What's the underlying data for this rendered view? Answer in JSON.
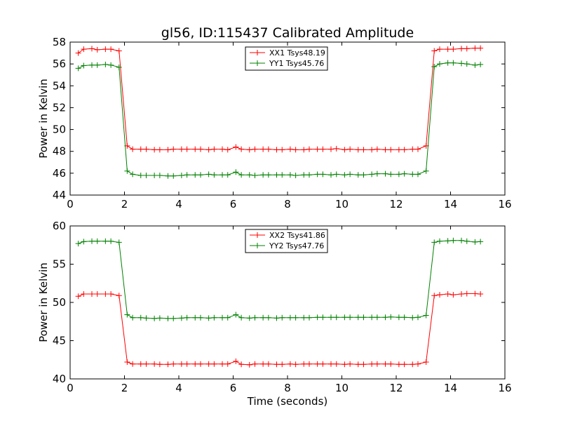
{
  "figure_title": "gl56, ID:115437 Calibrated Amplitude",
  "chart_data": [
    {
      "type": "line",
      "title": "gl56, ID:115437 Calibrated Amplitude",
      "xlabel": "",
      "ylabel": "Power in Kelvin",
      "xlim": [
        0,
        16
      ],
      "ylim": [
        44,
        58
      ],
      "xticks": [
        0,
        2,
        4,
        6,
        8,
        10,
        12,
        14,
        16
      ],
      "yticks": [
        44,
        46,
        48,
        50,
        52,
        54,
        56,
        58
      ],
      "x": [
        0.3,
        0.5,
        0.8,
        1.0,
        1.3,
        1.5,
        1.8,
        2.1,
        2.3,
        2.6,
        2.8,
        3.1,
        3.3,
        3.6,
        3.8,
        4.1,
        4.3,
        4.6,
        4.8,
        5.1,
        5.3,
        5.6,
        5.8,
        6.1,
        6.3,
        6.6,
        6.8,
        7.1,
        7.3,
        7.6,
        7.8,
        8.1,
        8.3,
        8.6,
        8.8,
        9.1,
        9.3,
        9.6,
        9.8,
        10.1,
        10.3,
        10.6,
        10.8,
        11.1,
        11.3,
        11.6,
        11.8,
        12.1,
        12.3,
        12.6,
        12.8,
        13.1,
        13.4,
        13.6,
        13.9,
        14.1,
        14.4,
        14.6,
        14.9,
        15.1
      ],
      "legend_position": "top-center",
      "series": [
        {
          "name": "XX1 Tsys48.19",
          "color": "#ff0000",
          "values": [
            57.0,
            57.35,
            57.4,
            57.3,
            57.35,
            57.35,
            57.2,
            48.5,
            48.2,
            48.2,
            48.2,
            48.15,
            48.15,
            48.15,
            48.2,
            48.2,
            48.2,
            48.2,
            48.2,
            48.15,
            48.2,
            48.2,
            48.15,
            48.4,
            48.2,
            48.15,
            48.2,
            48.2,
            48.2,
            48.15,
            48.15,
            48.2,
            48.15,
            48.15,
            48.2,
            48.2,
            48.2,
            48.2,
            48.25,
            48.15,
            48.2,
            48.15,
            48.15,
            48.15,
            48.2,
            48.15,
            48.15,
            48.15,
            48.15,
            48.2,
            48.2,
            48.5,
            57.2,
            57.35,
            57.35,
            57.35,
            57.4,
            57.4,
            57.45,
            57.45
          ]
        },
        {
          "name": "YY1 Tsys45.76",
          "color": "#008000",
          "values": [
            55.6,
            55.85,
            55.9,
            55.9,
            55.95,
            55.9,
            55.7,
            46.2,
            45.9,
            45.8,
            45.8,
            45.8,
            45.8,
            45.75,
            45.75,
            45.8,
            45.85,
            45.85,
            45.85,
            45.9,
            45.85,
            45.85,
            45.85,
            46.1,
            45.85,
            45.85,
            45.8,
            45.85,
            45.85,
            45.85,
            45.85,
            45.85,
            45.8,
            45.85,
            45.85,
            45.9,
            45.9,
            45.85,
            45.9,
            45.85,
            45.9,
            45.85,
            45.85,
            45.9,
            45.95,
            45.95,
            45.9,
            45.9,
            45.95,
            45.9,
            45.9,
            46.2,
            55.75,
            56.0,
            56.1,
            56.1,
            56.05,
            56.0,
            55.9,
            55.95
          ]
        }
      ]
    },
    {
      "type": "line",
      "title": "",
      "xlabel": "Time (seconds)",
      "ylabel": "Power in Kelvin",
      "xlim": [
        0,
        16
      ],
      "ylim": [
        40,
        60
      ],
      "xticks": [
        0,
        2,
        4,
        6,
        8,
        10,
        12,
        14,
        16
      ],
      "yticks": [
        40,
        45,
        50,
        55,
        60
      ],
      "x": [
        0.3,
        0.5,
        0.8,
        1.0,
        1.3,
        1.5,
        1.8,
        2.1,
        2.3,
        2.6,
        2.8,
        3.1,
        3.3,
        3.6,
        3.8,
        4.1,
        4.3,
        4.6,
        4.8,
        5.1,
        5.3,
        5.6,
        5.8,
        6.1,
        6.3,
        6.6,
        6.8,
        7.1,
        7.3,
        7.6,
        7.8,
        8.1,
        8.3,
        8.6,
        8.8,
        9.1,
        9.3,
        9.6,
        9.8,
        10.1,
        10.3,
        10.6,
        10.8,
        11.1,
        11.3,
        11.6,
        11.8,
        12.1,
        12.3,
        12.6,
        12.8,
        13.1,
        13.4,
        13.6,
        13.9,
        14.1,
        14.4,
        14.6,
        14.9,
        15.1
      ],
      "legend_position": "top-center",
      "series": [
        {
          "name": "XX2 Tsys41.86",
          "color": "#ff0000",
          "values": [
            50.8,
            51.1,
            51.1,
            51.1,
            51.1,
            51.1,
            50.9,
            42.2,
            41.95,
            41.95,
            41.95,
            41.95,
            41.9,
            41.9,
            41.95,
            41.95,
            41.95,
            41.95,
            41.95,
            41.95,
            41.95,
            41.95,
            41.95,
            42.3,
            41.9,
            41.85,
            41.95,
            41.95,
            41.95,
            41.9,
            41.9,
            41.95,
            41.9,
            41.95,
            41.95,
            41.95,
            41.95,
            41.95,
            41.95,
            41.9,
            41.95,
            41.9,
            41.9,
            41.95,
            41.95,
            41.95,
            41.95,
            41.9,
            41.9,
            41.9,
            41.95,
            42.2,
            50.9,
            51.0,
            51.1,
            51.0,
            51.1,
            51.15,
            51.15,
            51.1
          ]
        },
        {
          "name": "YY2 Tsys47.76",
          "color": "#008000",
          "values": [
            57.7,
            57.95,
            58.0,
            58.0,
            58.0,
            58.0,
            57.85,
            48.4,
            48.0,
            48.0,
            47.95,
            47.9,
            47.95,
            47.9,
            47.9,
            47.95,
            48.0,
            48.0,
            48.0,
            47.95,
            48.0,
            48.0,
            48.0,
            48.4,
            48.0,
            47.95,
            48.0,
            48.0,
            48.0,
            47.95,
            48.0,
            48.0,
            48.0,
            48.0,
            48.0,
            48.05,
            48.05,
            48.05,
            48.05,
            48.05,
            48.05,
            48.05,
            48.05,
            48.05,
            48.05,
            48.05,
            48.1,
            48.05,
            48.05,
            48.0,
            48.05,
            48.3,
            57.85,
            58.0,
            58.05,
            58.1,
            58.1,
            58.0,
            57.9,
            57.95
          ]
        }
      ]
    }
  ]
}
